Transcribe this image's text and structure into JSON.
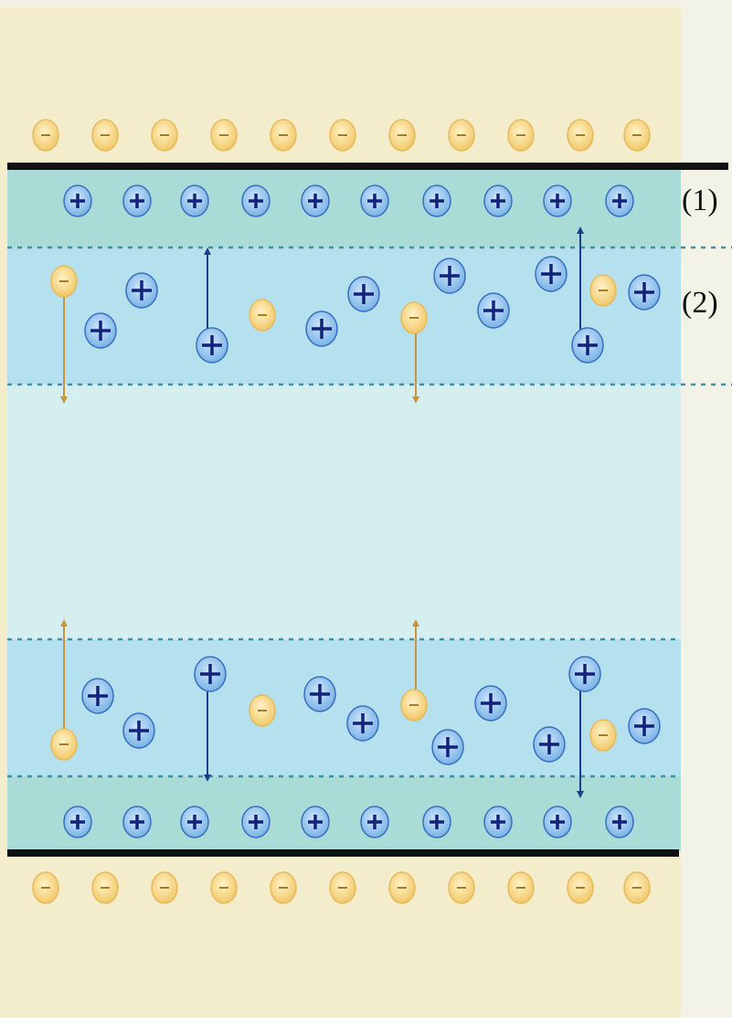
{
  "labels": {
    "layer_1": "(1)",
    "layer_2": "(2)"
  }
}
